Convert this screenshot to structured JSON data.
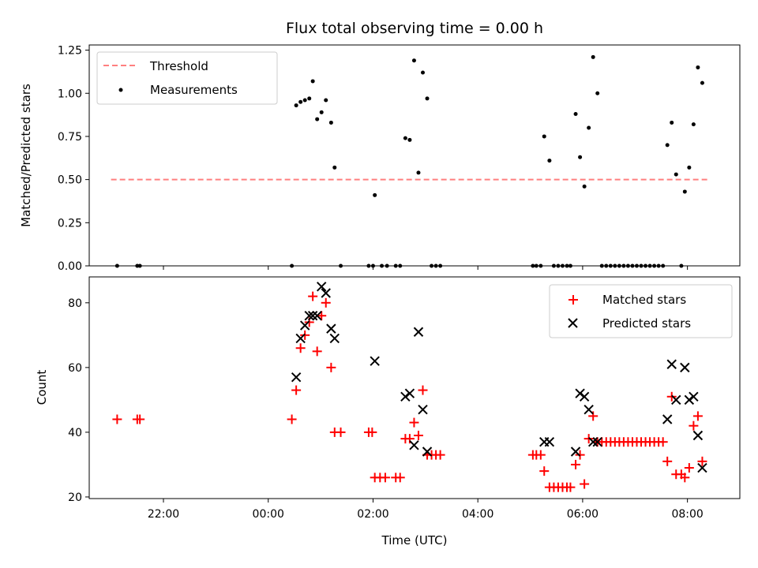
{
  "chart_data": [
    {
      "type": "scatter",
      "title": "Flux total observing time = 0.00 h",
      "xlabel": "",
      "ylabel": "Matched/Predicted stars",
      "ylim": [
        0,
        1.28
      ],
      "yticks": [
        "0.00",
        "0.25",
        "0.50",
        "0.75",
        "1.00",
        "1.25"
      ],
      "legend": {
        "placement": "upper-left",
        "entries": [
          "Threshold",
          "Measurements"
        ]
      },
      "threshold": {
        "name": "Threshold",
        "y": 0.5,
        "x_start": "21:00",
        "x_end": "08:25",
        "color": "#ff7f7f"
      },
      "series": [
        {
          "name": "Measurements",
          "marker": "dot",
          "color": "#000000",
          "points": [
            [
              "21:07",
              0.0
            ],
            [
              "21:30",
              0.0
            ],
            [
              "21:33",
              0.0
            ],
            [
              "00:27",
              0.0
            ],
            [
              "00:32",
              0.93
            ],
            [
              "00:37",
              0.95
            ],
            [
              "00:42",
              0.96
            ],
            [
              "00:47",
              0.97
            ],
            [
              "00:51",
              1.07
            ],
            [
              "00:56",
              0.85
            ],
            [
              "01:01",
              0.89
            ],
            [
              "01:06",
              0.96
            ],
            [
              "01:12",
              0.83
            ],
            [
              "01:16",
              0.57
            ],
            [
              "01:23",
              0.0
            ],
            [
              "01:55",
              0.0
            ],
            [
              "02:00",
              0.0
            ],
            [
              "02:02",
              0.41
            ],
            [
              "02:10",
              0.0
            ],
            [
              "02:16",
              0.0
            ],
            [
              "02:26",
              0.0
            ],
            [
              "02:31",
              0.0
            ],
            [
              "02:37",
              0.74
            ],
            [
              "02:42",
              0.73
            ],
            [
              "02:47",
              1.19
            ],
            [
              "02:52",
              0.54
            ],
            [
              "02:57",
              1.12
            ],
            [
              "03:02",
              0.97
            ],
            [
              "03:07",
              0.0
            ],
            [
              "03:12",
              0.0
            ],
            [
              "03:17",
              0.0
            ],
            [
              "05:03",
              0.0
            ],
            [
              "05:07",
              0.0
            ],
            [
              "05:12",
              0.0
            ],
            [
              "05:16",
              0.75
            ],
            [
              "05:22",
              0.61
            ],
            [
              "05:27",
              0.0
            ],
            [
              "05:32",
              0.0
            ],
            [
              "05:37",
              0.0
            ],
            [
              "05:42",
              0.0
            ],
            [
              "05:46",
              0.0
            ],
            [
              "05:52",
              0.88
            ],
            [
              "05:57",
              0.63
            ],
            [
              "06:02",
              0.46
            ],
            [
              "06:07",
              0.8
            ],
            [
              "06:12",
              1.21
            ],
            [
              "06:17",
              1.0
            ],
            [
              "06:22",
              0.0
            ],
            [
              "06:27",
              0.0
            ],
            [
              "06:32",
              0.0
            ],
            [
              "06:37",
              0.0
            ],
            [
              "06:42",
              0.0
            ],
            [
              "06:47",
              0.0
            ],
            [
              "06:52",
              0.0
            ],
            [
              "06:57",
              0.0
            ],
            [
              "07:02",
              0.0
            ],
            [
              "07:07",
              0.0
            ],
            [
              "07:12",
              0.0
            ],
            [
              "07:17",
              0.0
            ],
            [
              "07:22",
              0.0
            ],
            [
              "07:27",
              0.0
            ],
            [
              "07:32",
              0.0
            ],
            [
              "07:37",
              0.7
            ],
            [
              "07:42",
              0.83
            ],
            [
              "07:47",
              0.53
            ],
            [
              "07:53",
              0.0
            ],
            [
              "07:57",
              0.43
            ],
            [
              "08:02",
              0.57
            ],
            [
              "08:07",
              0.82
            ],
            [
              "08:12",
              1.15
            ],
            [
              "08:17",
              1.06
            ]
          ]
        }
      ]
    },
    {
      "type": "scatter",
      "title": "",
      "xlabel": "Time (UTC)",
      "ylabel": "Count",
      "xlim": [
        "20:35",
        "09:00"
      ],
      "ylim": [
        19.5,
        88
      ],
      "xticks": [
        "22:00",
        "00:00",
        "02:00",
        "04:00",
        "06:00",
        "08:00"
      ],
      "yticks": [
        "20",
        "40",
        "60",
        "80"
      ],
      "legend": {
        "placement": "upper-right",
        "entries": [
          "Matched stars",
          "Predicted stars"
        ]
      },
      "series": [
        {
          "name": "Matched stars",
          "marker": "plus",
          "color": "#ff0000",
          "points": [
            [
              "21:07",
              44
            ],
            [
              "21:30",
              44
            ],
            [
              "21:33",
              44
            ],
            [
              "00:27",
              44
            ],
            [
              "00:32",
              53
            ],
            [
              "00:37",
              66
            ],
            [
              "00:42",
              70
            ],
            [
              "00:47",
              74
            ],
            [
              "00:51",
              82
            ],
            [
              "00:56",
              65
            ],
            [
              "01:01",
              76
            ],
            [
              "01:06",
              80
            ],
            [
              "01:12",
              60
            ],
            [
              "01:16",
              40
            ],
            [
              "01:23",
              40
            ],
            [
              "01:55",
              40
            ],
            [
              "01:59",
              40
            ],
            [
              "02:02",
              26
            ],
            [
              "02:08",
              26
            ],
            [
              "02:14",
              26
            ],
            [
              "02:26",
              26
            ],
            [
              "02:31",
              26
            ],
            [
              "02:37",
              38
            ],
            [
              "02:42",
              38
            ],
            [
              "02:47",
              43
            ],
            [
              "02:52",
              39
            ],
            [
              "02:57",
              53
            ],
            [
              "03:02",
              33
            ],
            [
              "03:07",
              33
            ],
            [
              "03:12",
              33
            ],
            [
              "03:17",
              33
            ],
            [
              "05:03",
              33
            ],
            [
              "05:07",
              33
            ],
            [
              "05:12",
              33
            ],
            [
              "05:16",
              28
            ],
            [
              "05:22",
              23
            ],
            [
              "05:27",
              23
            ],
            [
              "05:32",
              23
            ],
            [
              "05:37",
              23
            ],
            [
              "05:42",
              23
            ],
            [
              "05:46",
              23
            ],
            [
              "05:52",
              30
            ],
            [
              "05:57",
              33
            ],
            [
              "06:02",
              24
            ],
            [
              "06:07",
              38
            ],
            [
              "06:12",
              45
            ],
            [
              "06:17",
              37
            ],
            [
              "06:22",
              37
            ],
            [
              "06:27",
              37
            ],
            [
              "06:32",
              37
            ],
            [
              "06:37",
              37
            ],
            [
              "06:42",
              37
            ],
            [
              "06:47",
              37
            ],
            [
              "06:52",
              37
            ],
            [
              "06:57",
              37
            ],
            [
              "07:02",
              37
            ],
            [
              "07:07",
              37
            ],
            [
              "07:12",
              37
            ],
            [
              "07:17",
              37
            ],
            [
              "07:22",
              37
            ],
            [
              "07:27",
              37
            ],
            [
              "07:32",
              37
            ],
            [
              "07:37",
              31
            ],
            [
              "07:42",
              51
            ],
            [
              "07:47",
              27
            ],
            [
              "07:53",
              27
            ],
            [
              "07:57",
              26
            ],
            [
              "08:02",
              29
            ],
            [
              "08:07",
              42
            ],
            [
              "08:12",
              45
            ],
            [
              "08:17",
              31
            ]
          ]
        },
        {
          "name": "Predicted stars",
          "marker": "x",
          "color": "#000000",
          "points": [
            [
              "00:32",
              57
            ],
            [
              "00:37",
              69
            ],
            [
              "00:42",
              73
            ],
            [
              "00:47",
              76
            ],
            [
              "00:51",
              76
            ],
            [
              "00:56",
              76
            ],
            [
              "01:01",
              85
            ],
            [
              "01:06",
              83
            ],
            [
              "01:12",
              72
            ],
            [
              "01:16",
              69
            ],
            [
              "02:02",
              62
            ],
            [
              "02:37",
              51
            ],
            [
              "02:42",
              52
            ],
            [
              "02:47",
              36
            ],
            [
              "02:52",
              71
            ],
            [
              "02:57",
              47
            ],
            [
              "03:02",
              34
            ],
            [
              "05:16",
              37
            ],
            [
              "05:22",
              37
            ],
            [
              "05:52",
              34
            ],
            [
              "05:57",
              52
            ],
            [
              "06:02",
              51
            ],
            [
              "06:07",
              47
            ],
            [
              "06:12",
              37
            ],
            [
              "06:17",
              37
            ],
            [
              "07:37",
              44
            ],
            [
              "07:42",
              61
            ],
            [
              "07:47",
              50
            ],
            [
              "07:57",
              60
            ],
            [
              "08:02",
              50
            ],
            [
              "08:07",
              51
            ],
            [
              "08:12",
              39
            ],
            [
              "08:17",
              29
            ]
          ]
        }
      ]
    }
  ]
}
